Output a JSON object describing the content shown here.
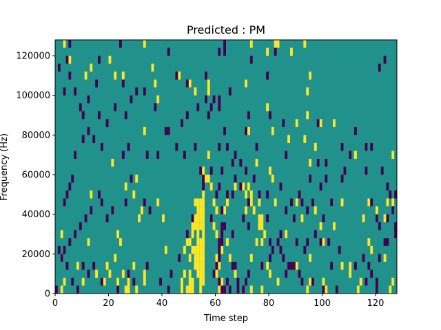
{
  "chart_data": {
    "type": "heatmap",
    "title": "Predicted : PM",
    "xlabel": "Time step",
    "ylabel": "Frequency (Hz)",
    "xlim": [
      0,
      128
    ],
    "ylim": [
      0,
      128000
    ],
    "x_ticks": [
      0,
      20,
      40,
      60,
      80,
      100,
      120
    ],
    "x_tick_labels": [
      "0",
      "20",
      "40",
      "60",
      "80",
      "100",
      "120"
    ],
    "y_ticks": [
      0,
      20000,
      40000,
      60000,
      80000,
      100000,
      120000
    ],
    "y_tick_labels": [
      "0",
      "20000",
      "40000",
      "60000",
      "80000",
      "100000",
      "120000"
    ],
    "grid": false,
    "colormap": "viridis",
    "background_value": "mid",
    "colors": {
      "low": "#440154",
      "mid": "#21918c",
      "high": "#fde725"
    },
    "time_steps": 128,
    "freq_bins": 32,
    "bin_height_hz": 4000,
    "cells_high": [
      [
        3,
        31
      ],
      [
        33,
        31
      ],
      [
        73,
        31
      ],
      [
        82,
        31
      ],
      [
        83,
        31
      ],
      [
        93,
        31
      ],
      [
        79,
        30
      ],
      [
        88,
        30
      ],
      [
        20,
        29
      ],
      [
        5,
        29
      ],
      [
        13,
        28
      ],
      [
        36,
        28
      ],
      [
        46,
        27
      ],
      [
        95,
        27
      ],
      [
        22,
        27
      ],
      [
        11,
        27
      ],
      [
        25,
        27
      ],
      [
        50,
        26
      ],
      [
        71,
        26
      ],
      [
        37,
        26
      ],
      [
        57,
        26
      ],
      [
        94,
        25
      ],
      [
        52,
        25
      ],
      [
        57,
        25
      ],
      [
        38,
        24
      ],
      [
        79,
        23
      ],
      [
        94,
        22
      ],
      [
        99,
        21
      ],
      [
        104,
        21
      ],
      [
        90,
        21
      ],
      [
        72,
        20
      ],
      [
        33,
        20
      ],
      [
        81,
        20
      ],
      [
        87,
        19
      ],
      [
        93,
        19
      ],
      [
        112,
        17
      ],
      [
        126,
        17
      ],
      [
        57,
        17
      ],
      [
        97,
        18
      ],
      [
        21,
        16
      ],
      [
        95,
        16
      ],
      [
        75,
        16
      ],
      [
        55,
        15
      ],
      [
        80,
        15
      ],
      [
        30,
        14
      ],
      [
        81,
        14
      ],
      [
        57,
        14
      ],
      [
        56,
        14
      ],
      [
        26,
        13
      ],
      [
        29,
        12
      ],
      [
        64,
        11
      ],
      [
        82,
        11
      ],
      [
        103,
        11
      ],
      [
        55,
        11
      ],
      [
        73,
        11
      ],
      [
        76,
        11
      ],
      [
        38,
        11
      ],
      [
        120,
        10
      ],
      [
        71,
        10
      ],
      [
        63,
        10
      ],
      [
        90,
        11
      ],
      [
        126,
        11
      ],
      [
        107,
        11
      ],
      [
        59,
        11
      ],
      [
        54,
        11
      ],
      [
        55,
        12
      ],
      [
        53,
        11
      ],
      [
        52,
        11
      ],
      [
        53,
        10
      ],
      [
        52,
        9
      ],
      [
        52,
        8
      ],
      [
        53,
        7
      ],
      [
        53,
        6
      ],
      [
        52,
        5
      ],
      [
        52,
        4
      ],
      [
        52,
        3
      ],
      [
        53,
        2
      ],
      [
        54,
        1
      ],
      [
        54,
        0
      ],
      [
        55,
        1
      ],
      [
        55,
        2
      ],
      [
        55,
        3
      ],
      [
        55,
        4
      ],
      [
        55,
        5
      ],
      [
        55,
        6
      ],
      [
        55,
        7
      ],
      [
        55,
        8
      ],
      [
        55,
        9
      ],
      [
        55,
        10
      ],
      [
        54,
        4
      ],
      [
        54,
        5
      ],
      [
        54,
        3
      ],
      [
        54,
        6
      ],
      [
        54,
        2
      ],
      [
        53,
        3
      ],
      [
        53,
        4
      ],
      [
        53,
        5
      ],
      [
        54,
        8
      ],
      [
        54,
        9
      ],
      [
        54,
        10
      ],
      [
        53,
        8
      ],
      [
        53,
        9
      ],
      [
        51,
        7
      ],
      [
        51,
        8
      ],
      [
        51,
        5
      ],
      [
        50,
        6
      ],
      [
        50,
        4
      ],
      [
        50,
        2
      ],
      [
        50,
        1
      ],
      [
        49,
        6
      ],
      [
        48,
        5
      ],
      [
        48,
        2
      ],
      [
        47,
        1
      ],
      [
        47,
        0
      ],
      [
        49,
        0
      ],
      [
        50,
        0
      ],
      [
        51,
        0
      ],
      [
        51,
        1
      ],
      [
        58,
        13
      ],
      [
        67,
        13
      ],
      [
        72,
        13
      ],
      [
        73,
        12
      ],
      [
        71,
        12
      ],
      [
        70,
        13
      ],
      [
        74,
        10
      ],
      [
        76,
        9
      ],
      [
        76,
        8
      ],
      [
        78,
        7
      ],
      [
        77,
        6
      ],
      [
        75,
        6
      ],
      [
        77,
        9
      ],
      [
        8,
        3
      ],
      [
        2,
        4
      ],
      [
        13,
        12
      ],
      [
        117,
        11
      ],
      [
        124,
        11
      ],
      [
        115,
        9
      ],
      [
        117,
        6
      ],
      [
        123,
        9
      ],
      [
        40,
        9
      ],
      [
        29,
        3
      ],
      [
        27,
        1
      ],
      [
        27,
        0
      ],
      [
        26,
        0
      ],
      [
        23,
        1
      ],
      [
        25,
        2
      ],
      [
        20,
        2
      ],
      [
        19,
        3
      ],
      [
        24,
        6
      ],
      [
        23,
        7
      ],
      [
        22,
        4
      ],
      [
        15,
        2
      ],
      [
        18,
        1
      ],
      [
        32,
        10
      ],
      [
        31,
        9
      ],
      [
        12,
        6
      ],
      [
        2,
        7
      ],
      [
        3,
        1
      ],
      [
        2,
        0
      ],
      [
        30,
        0
      ],
      [
        33,
        2
      ],
      [
        33,
        1
      ],
      [
        10,
        1
      ],
      [
        41,
        5
      ],
      [
        60,
        2
      ],
      [
        77,
        0
      ],
      [
        73,
        0
      ],
      [
        80,
        2
      ],
      [
        83,
        1
      ],
      [
        90,
        3
      ],
      [
        94,
        0
      ],
      [
        95,
        1
      ],
      [
        100,
        1
      ],
      [
        101,
        0
      ],
      [
        107,
        3
      ],
      [
        110,
        2
      ],
      [
        113,
        0
      ],
      [
        114,
        1
      ],
      [
        125,
        0
      ],
      [
        126,
        1
      ],
      [
        100,
        6
      ],
      [
        99,
        8
      ],
      [
        97,
        10
      ],
      [
        104,
        8
      ],
      [
        110,
        3
      ],
      [
        118,
        5
      ],
      [
        123,
        4
      ],
      [
        95,
        4
      ],
      [
        73,
        4
      ],
      [
        79,
        3
      ],
      [
        67,
        2
      ],
      [
        65,
        4
      ],
      [
        62,
        1
      ],
      [
        60,
        4
      ],
      [
        61,
        0
      ],
      [
        61,
        3
      ],
      [
        60,
        7
      ],
      [
        59,
        8
      ],
      [
        58,
        9
      ],
      [
        60,
        10
      ],
      [
        62,
        5
      ],
      [
        64,
        6
      ],
      [
        77,
        8
      ],
      [
        86,
        7
      ],
      [
        92,
        9
      ]
    ],
    "cells_low": [
      [
        5,
        31
      ],
      [
        24,
        31
      ],
      [
        63,
        31
      ],
      [
        82,
        30
      ],
      [
        42,
        30
      ],
      [
        73,
        29
      ],
      [
        4,
        29
      ],
      [
        16,
        29
      ],
      [
        5,
        27
      ],
      [
        15,
        26
      ],
      [
        56,
        27
      ],
      [
        25,
        26
      ],
      [
        63,
        30
      ],
      [
        61,
        30
      ],
      [
        45,
        27
      ],
      [
        59,
        24
      ],
      [
        49,
        26
      ],
      [
        72,
        22
      ],
      [
        61,
        24
      ],
      [
        65,
        25
      ],
      [
        61,
        23
      ],
      [
        80,
        22
      ],
      [
        79,
        27
      ],
      [
        85,
        21
      ],
      [
        71,
        20
      ],
      [
        42,
        20
      ],
      [
        98,
        21
      ],
      [
        112,
        20
      ],
      [
        123,
        29
      ],
      [
        121,
        28
      ],
      [
        116,
        18
      ],
      [
        110,
        17
      ],
      [
        107,
        14
      ],
      [
        101,
        14
      ],
      [
        99,
        13
      ],
      [
        95,
        14
      ],
      [
        94,
        10
      ],
      [
        91,
        12
      ],
      [
        84,
        7
      ],
      [
        86,
        10
      ],
      [
        99,
        6
      ],
      [
        106,
        5
      ],
      [
        103,
        3
      ],
      [
        117,
        3
      ],
      [
        116,
        1
      ],
      [
        120,
        1
      ],
      [
        120,
        0
      ],
      [
        121,
        4
      ],
      [
        112,
        3
      ],
      [
        105,
        0
      ],
      [
        100,
        0
      ],
      [
        92,
        1
      ],
      [
        96,
        1
      ],
      [
        91,
        2
      ],
      [
        89,
        3
      ],
      [
        87,
        3
      ],
      [
        88,
        3
      ],
      [
        86,
        2
      ],
      [
        85,
        4
      ],
      [
        84,
        5
      ],
      [
        83,
        6
      ],
      [
        80,
        6
      ],
      [
        79,
        9
      ],
      [
        72,
        11
      ],
      [
        67,
        14
      ],
      [
        64,
        12
      ],
      [
        61,
        13
      ],
      [
        60,
        12
      ],
      [
        62,
        15
      ],
      [
        61,
        18
      ],
      [
        64,
        18
      ],
      [
        63,
        20
      ],
      [
        57,
        22
      ],
      [
        54,
        15
      ],
      [
        52,
        18
      ],
      [
        48,
        17
      ],
      [
        55,
        13
      ],
      [
        55,
        14
      ],
      [
        58,
        15
      ],
      [
        66,
        12
      ],
      [
        69,
        13
      ],
      [
        66,
        16
      ],
      [
        62,
        10
      ],
      [
        62,
        8
      ],
      [
        62,
        7
      ],
      [
        61,
        6
      ],
      [
        61,
        5
      ],
      [
        62,
        6
      ],
      [
        61,
        4
      ],
      [
        60,
        3
      ],
      [
        59,
        2
      ],
      [
        61,
        1
      ],
      [
        64,
        1
      ],
      [
        65,
        0
      ],
      [
        63,
        0
      ],
      [
        62,
        0
      ],
      [
        66,
        3
      ],
      [
        67,
        3
      ],
      [
        68,
        0
      ],
      [
        68,
        1
      ],
      [
        70,
        0
      ],
      [
        71,
        1
      ],
      [
        72,
        2
      ],
      [
        77,
        3
      ],
      [
        80,
        4
      ],
      [
        81,
        5
      ],
      [
        89,
        9
      ],
      [
        92,
        11
      ],
      [
        96,
        11
      ],
      [
        100,
        9
      ],
      [
        103,
        11
      ],
      [
        102,
        6
      ],
      [
        115,
        4
      ],
      [
        118,
        2
      ],
      [
        125,
        12
      ],
      [
        127,
        12
      ],
      [
        126,
        10
      ],
      [
        127,
        8
      ],
      [
        124,
        6
      ],
      [
        124,
        9
      ],
      [
        97,
        7
      ],
      [
        94,
        6
      ],
      [
        93,
        5
      ],
      [
        90,
        6
      ],
      [
        76,
        12
      ],
      [
        74,
        14
      ],
      [
        71,
        15
      ],
      [
        69,
        16
      ],
      [
        67,
        17
      ],
      [
        75,
        18
      ],
      [
        86,
        17
      ],
      [
        98,
        16
      ],
      [
        101,
        16
      ],
      [
        107,
        18
      ],
      [
        116,
        15
      ],
      [
        108,
        15
      ],
      [
        118,
        11
      ],
      [
        120,
        9
      ],
      [
        121,
        8
      ],
      [
        123,
        6
      ],
      [
        127,
        7
      ],
      [
        35,
        10
      ],
      [
        33,
        11
      ],
      [
        28,
        14
      ],
      [
        26,
        11
      ],
      [
        21,
        10
      ],
      [
        19,
        9
      ],
      [
        17,
        11
      ],
      [
        16,
        12
      ],
      [
        13,
        10
      ],
      [
        11,
        9
      ],
      [
        9,
        8
      ],
      [
        7,
        7
      ],
      [
        5,
        6
      ],
      [
        3,
        5
      ],
      [
        2,
        4
      ],
      [
        1,
        5
      ],
      [
        4,
        12
      ],
      [
        3,
        11
      ],
      [
        5,
        13
      ],
      [
        6,
        14
      ],
      [
        7,
        17
      ],
      [
        10,
        19
      ],
      [
        14,
        19
      ],
      [
        17,
        18
      ],
      [
        25,
        17
      ],
      [
        27,
        18
      ],
      [
        34,
        17
      ],
      [
        38,
        17
      ],
      [
        45,
        18
      ],
      [
        58,
        9
      ],
      [
        63,
        8
      ],
      [
        66,
        7
      ],
      [
        70,
        9
      ],
      [
        72,
        8
      ],
      [
        79,
        12
      ],
      [
        84,
        13
      ],
      [
        88,
        11
      ],
      [
        4,
        3
      ],
      [
        6,
        1
      ],
      [
        8,
        0
      ],
      [
        10,
        3
      ],
      [
        12,
        2
      ],
      [
        14,
        3
      ],
      [
        17,
        1
      ],
      [
        23,
        0
      ],
      [
        27,
        2
      ],
      [
        29,
        1
      ],
      [
        34,
        3
      ],
      [
        39,
        1
      ],
      [
        42,
        0
      ],
      [
        43,
        2
      ],
      [
        46,
        4
      ],
      [
        49,
        7
      ],
      [
        51,
        9
      ],
      [
        12,
        24
      ],
      [
        16,
        22
      ],
      [
        19,
        21
      ],
      [
        22,
        23
      ],
      [
        26,
        22
      ],
      [
        28,
        24
      ],
      [
        30,
        25
      ],
      [
        33,
        25
      ],
      [
        37,
        23
      ],
      [
        41,
        20
      ],
      [
        47,
        21
      ],
      [
        49,
        22
      ],
      [
        53,
        23
      ],
      [
        56,
        24
      ],
      [
        58,
        23
      ],
      [
        1,
        28
      ],
      [
        3,
        25
      ],
      [
        7,
        25
      ],
      [
        9,
        23
      ],
      [
        10,
        22
      ],
      [
        12,
        20
      ],
      [
        118,
        18
      ],
      [
        122,
        15
      ],
      [
        124,
        13
      ],
      [
        0,
        0
      ]
    ]
  }
}
